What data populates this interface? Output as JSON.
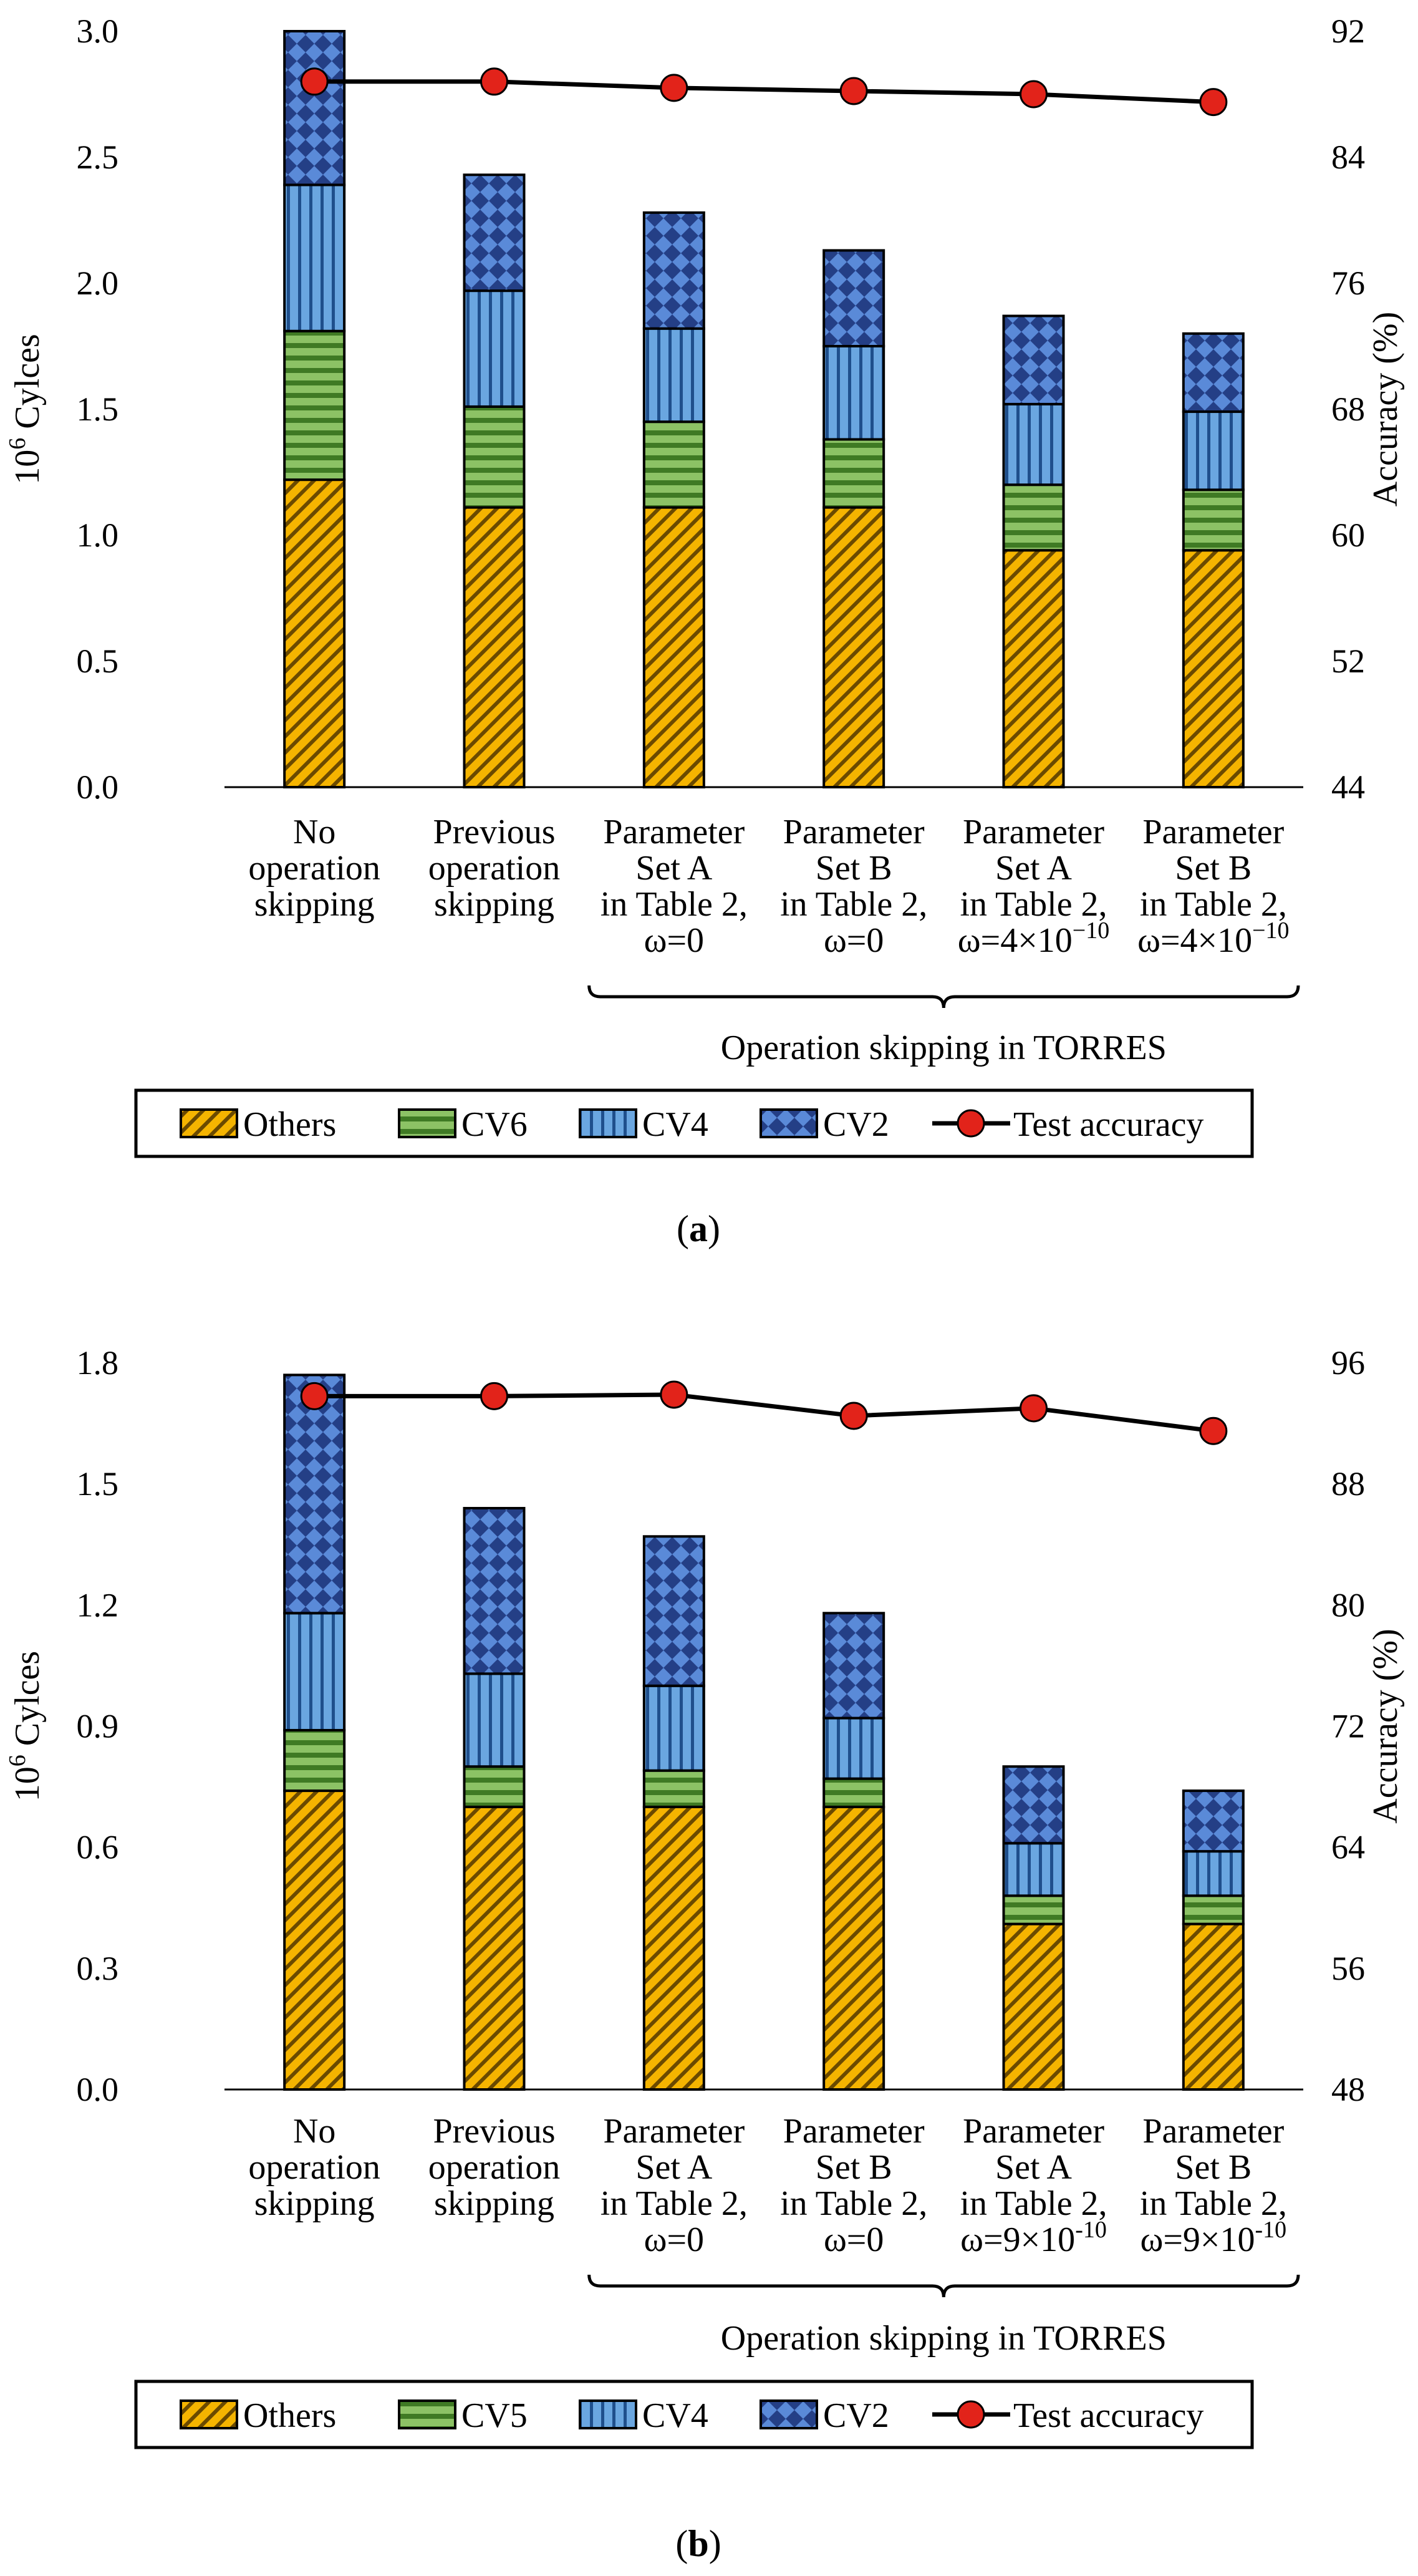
{
  "chart_data": [
    {
      "type": "bar",
      "stacked": true,
      "panel_label": "a",
      "categories": [
        [
          "No",
          "operation",
          "skipping"
        ],
        [
          "Previous",
          "operation",
          "skipping"
        ],
        [
          "Parameter",
          "Set A",
          "in Table 2,",
          "ω=0"
        ],
        [
          "Parameter",
          "Set B",
          "in Table 2,",
          "ω=0"
        ],
        [
          "Parameter",
          "Set A",
          "in Table 2,",
          "ω=4×10"
        ],
        [
          "Parameter",
          "Set B",
          "in Table 2,",
          "ω=4×10"
        ]
      ],
      "category_exponents": [
        "",
        "",
        "",
        "",
        "−10",
        "−10"
      ],
      "series": [
        {
          "name": "Others",
          "color": "#f5b400",
          "values": [
            1.22,
            1.11,
            1.11,
            1.11,
            0.94,
            0.94
          ]
        },
        {
          "name": "CV6",
          "color": "#6cab46",
          "values": [
            0.59,
            0.4,
            0.34,
            0.27,
            0.26,
            0.24
          ]
        },
        {
          "name": "CV4",
          "color": "#4f8fd0",
          "values": [
            0.58,
            0.46,
            0.37,
            0.37,
            0.32,
            0.31
          ]
        },
        {
          "name": "CV2",
          "color": "#3a64b8",
          "values": [
            0.61,
            0.46,
            0.46,
            0.38,
            0.35,
            0.31
          ]
        }
      ],
      "line_series": {
        "name": "Test accuracy",
        "color": "#e2231a",
        "values": [
          88.8,
          88.8,
          88.4,
          88.2,
          88.0,
          87.5
        ]
      },
      "ylabel": "Cylces",
      "ylabel_base": "10",
      "ylabel_exp": "6",
      "ylim": [
        0,
        3.0
      ],
      "yticks": [
        "0.0",
        "0.5",
        "1.0",
        "1.5",
        "2.0",
        "2.5",
        "3.0"
      ],
      "y2label": "Accuracy (%)",
      "y2lim": [
        44,
        92
      ],
      "y2ticks": [
        "44",
        "52",
        "60",
        "68",
        "76",
        "84",
        "92"
      ],
      "group_label": "Operation skipping in TORRES",
      "legend_position": "bottom"
    },
    {
      "type": "bar",
      "stacked": true,
      "panel_label": "b",
      "categories": [
        [
          "No",
          "operation",
          "skipping"
        ],
        [
          "Previous",
          "operation",
          "skipping"
        ],
        [
          "Parameter",
          "Set A",
          "in Table 2,",
          "ω=0"
        ],
        [
          "Parameter",
          "Set B",
          "in Table 2,",
          "ω=0"
        ],
        [
          "Parameter",
          "Set A",
          "in Table 2,",
          "ω=9×10"
        ],
        [
          "Parameter",
          "Set B",
          "in Table 2,",
          "ω=9×10"
        ]
      ],
      "category_exponents": [
        "",
        "",
        "",
        "",
        "-10",
        "-10"
      ],
      "series": [
        {
          "name": "Others",
          "color": "#f5b400",
          "values": [
            0.74,
            0.7,
            0.7,
            0.7,
            0.41,
            0.41
          ]
        },
        {
          "name": "CV5",
          "color": "#6cab46",
          "values": [
            0.15,
            0.1,
            0.09,
            0.07,
            0.07,
            0.07
          ]
        },
        {
          "name": "CV4",
          "color": "#4f8fd0",
          "values": [
            0.29,
            0.23,
            0.21,
            0.15,
            0.13,
            0.11
          ]
        },
        {
          "name": "CV2",
          "color": "#3a64b8",
          "values": [
            0.59,
            0.41,
            0.37,
            0.26,
            0.19,
            0.15
          ]
        }
      ],
      "line_series": {
        "name": "Test accuracy",
        "color": "#e2231a",
        "values": [
          93.8,
          93.8,
          93.9,
          92.5,
          93.0,
          91.5
        ]
      },
      "ylabel": "Cylces",
      "ylabel_base": "10",
      "ylabel_exp": "6",
      "ylim": [
        0,
        1.8
      ],
      "yticks": [
        "0.0",
        "0.3",
        "0.6",
        "0.9",
        "1.2",
        "1.5",
        "1.8"
      ],
      "y2label": "Accuracy (%)",
      "y2lim": [
        48,
        96
      ],
      "y2ticks": [
        "48",
        "56",
        "64",
        "72",
        "80",
        "88",
        "96"
      ],
      "group_label": "Operation skipping in TORRES",
      "legend_position": "bottom"
    }
  ]
}
